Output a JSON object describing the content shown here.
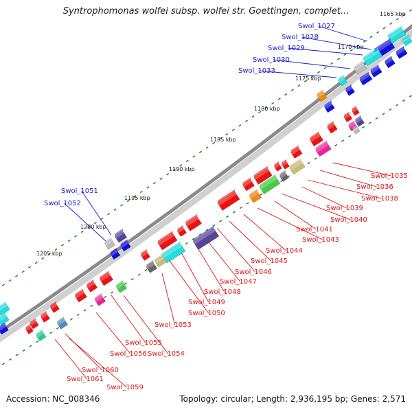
{
  "title": "Syntrophomonas wolfei subsp. wolfei str. Goettingen, complet...",
  "footer": {
    "accession": "Accession: NC_008346",
    "summary": "Topology: circular; Length: 2,936,195 bp; Genes: 2,571"
  },
  "ticks": [
    {
      "label": "1165 kbp",
      "kbp": 1165
    },
    {
      "label": "1170 kbp",
      "kbp": 1170
    },
    {
      "label": "1175 kbp",
      "kbp": 1175
    },
    {
      "label": "1180 kbp",
      "kbp": 1180
    },
    {
      "label": "1185 kbp",
      "kbp": 1185
    },
    {
      "label": "1190 kbp",
      "kbp": 1190
    },
    {
      "label": "1195 kbp",
      "kbp": 1195
    },
    {
      "label": "1200 kbp",
      "kbp": 1200
    },
    {
      "label": "1205 kbp",
      "kbp": 1205
    }
  ],
  "labels_forward": [
    "Swol_1027",
    "Swol_1028",
    "Swol_1029",
    "Swol_1030",
    "Swol_1033",
    "Swol_1051",
    "Swol_1052"
  ],
  "labels_reverse": [
    "Swol_1035",
    "Swol_1036",
    "Swol_1038",
    "Swol_1039",
    "Swol_1040",
    "Swol_1041",
    "Swol_1043",
    "Swol_1044",
    "Swol_1045",
    "Swol_1046",
    "Swol_1047",
    "Swol_1048",
    "Swol_1049",
    "Swol_1050",
    "Swol_1053",
    "Swol_1055",
    "Swol_1056",
    "Swol_1054",
    "Swol_1060",
    "Swol_1061",
    "Swol_1059"
  ],
  "colors": {
    "backbone": "#8a8a8a",
    "tick_dots": "#2e8b2e",
    "forward_label": "#1a1acc",
    "reverse_label": "#dd1111",
    "gene_red": "#ee1111",
    "gene_blue": "#1010dd",
    "gene_cyan": "#22dddd",
    "gene_gray": "#bbbbbb",
    "gene_purple": "#554499",
    "gene_orange": "#ee8811",
    "gene_green": "#44cc44",
    "gene_pink": "#ee2299",
    "gene_khaki": "#c8bd78",
    "gene_darkgray": "#666666",
    "gene_steel": "#5588bb",
    "gene_teal": "#22cc99"
  }
}
